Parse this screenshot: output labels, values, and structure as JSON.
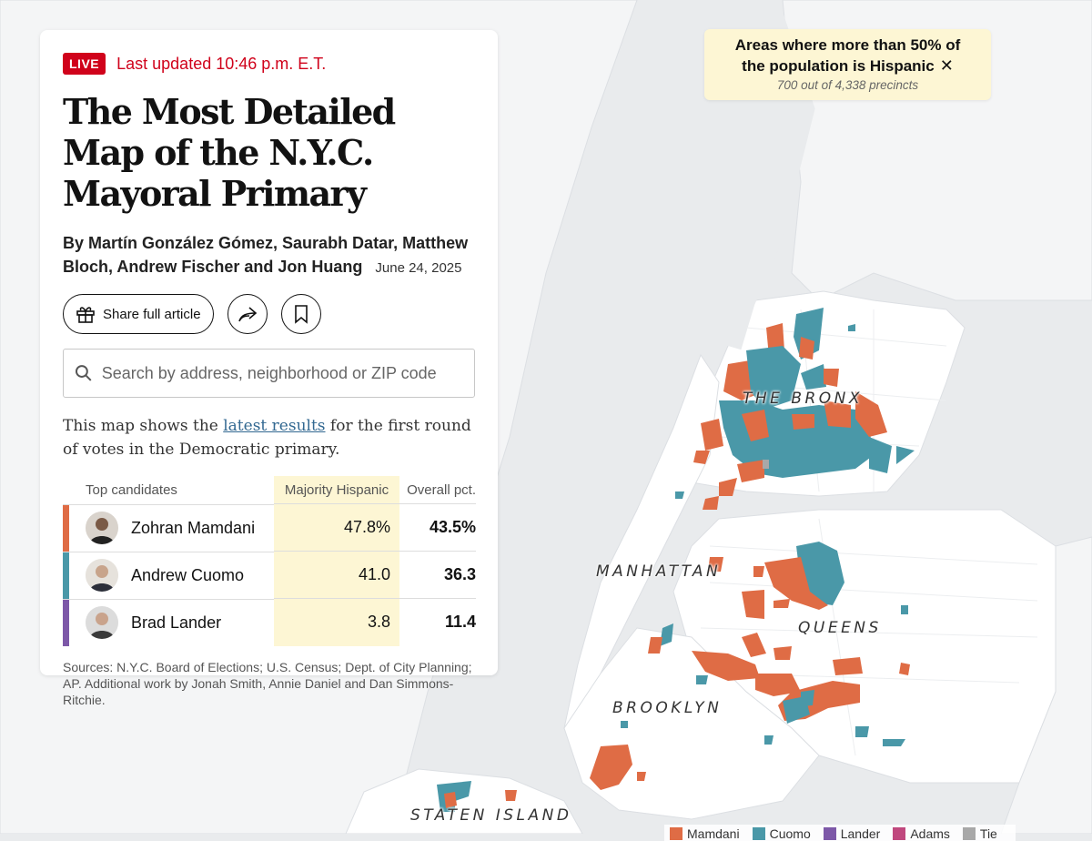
{
  "map": {
    "boroughs": [
      "THE BRONX",
      "MANHATTAN",
      "QUEENS",
      "BROOKLYN",
      "STATEN ISLAND"
    ],
    "colors": {
      "water": "#e9ebed",
      "land": "#ffffff",
      "mamdani": "#df6c45",
      "cuomo": "#4a98a8",
      "lander": "#7d58a8",
      "adams": "#c0487e",
      "tie": "#a8a8a8"
    }
  },
  "filter_chip": {
    "line1": "Areas where more than 50% of",
    "line2": "the population is Hispanic",
    "close_icon": "close-icon",
    "subtitle": "700 out of 4,338 precincts"
  },
  "article": {
    "live_label": "LIVE",
    "updated": "Last updated 10:46 p.m. E.T.",
    "title": "The Most Detailed Map of the N.Y.C. Mayoral Primary",
    "byline": "By Martín González Gómez, Saurabh Datar, Matthew Bloch, Andrew Fischer and Jon Huang",
    "date": "June 24, 2025",
    "share_label": "Share full article",
    "search_placeholder": "Search by address, neighborhood or ZIP code",
    "desc_before": "This map shows the ",
    "desc_link": "latest results",
    "desc_after": " for the first round of votes in the Democratic primary.",
    "sources": "Sources: N.Y.C. Board of Elections; U.S. Census; Dept. of City Planning; AP.  Additional work by Jonah Smith, Annie Daniel and Dan Simmons-Ritchie."
  },
  "table": {
    "headers": {
      "candidates": "Top candidates",
      "majority": "Majority Hispanic",
      "overall": "Overall pct."
    },
    "rows": [
      {
        "name": "Zohran Mamdani",
        "majority": "47.8%",
        "overall": "43.5%",
        "color": "#df6c45"
      },
      {
        "name": "Andrew Cuomo",
        "majority": "41.0",
        "overall": "36.3",
        "color": "#4a98a8"
      },
      {
        "name": "Brad Lander",
        "majority": "3.8",
        "overall": "11.4",
        "color": "#7d58a8"
      }
    ]
  },
  "legend": [
    {
      "label": "Mamdani",
      "color": "#df6c45"
    },
    {
      "label": "Cuomo",
      "color": "#4a98a8"
    },
    {
      "label": "Lander",
      "color": "#7d58a8"
    },
    {
      "label": "Adams",
      "color": "#c0487e"
    },
    {
      "label": "Tie",
      "color": "#a8a8a8"
    }
  ]
}
